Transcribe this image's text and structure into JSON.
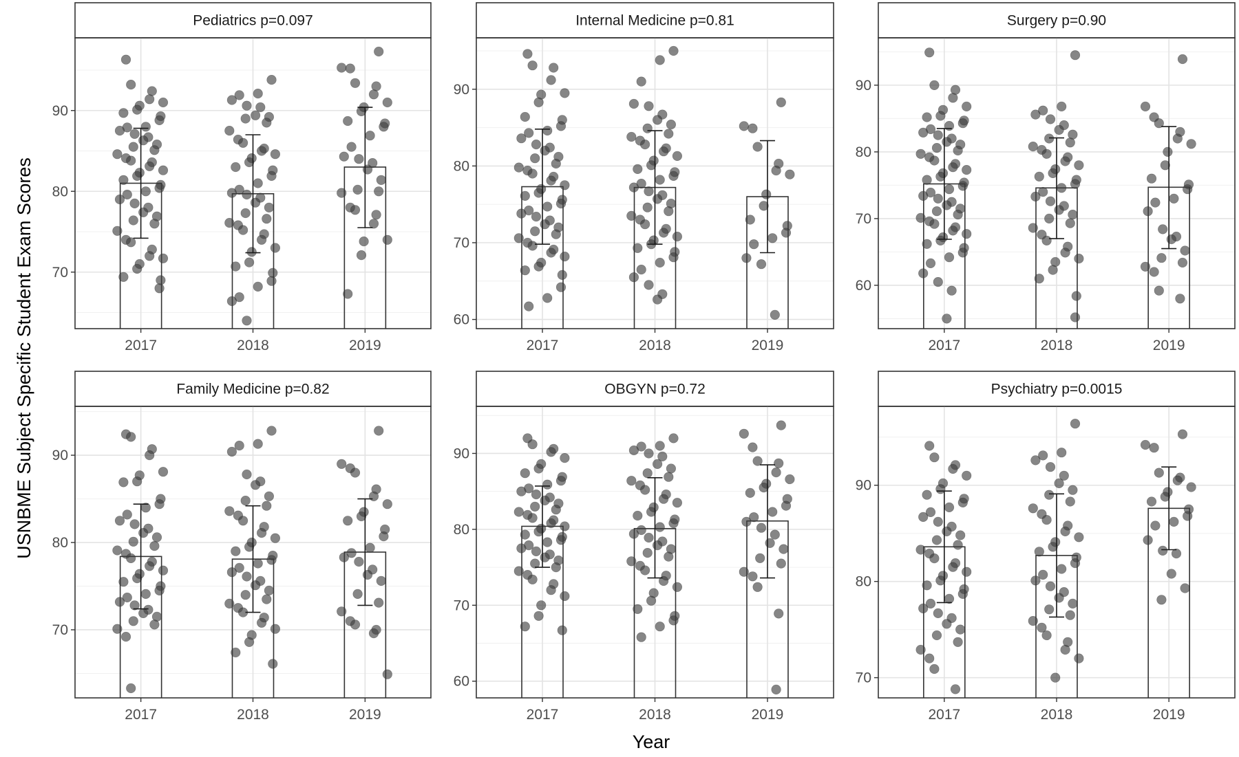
{
  "figure": {
    "xlabel": "Year",
    "ylabel": "USNBME Subject Specific Student Exam Scores"
  },
  "chart_data": [
    {
      "type": "bar",
      "title": "Pediatrics p=0.097",
      "categories": [
        "2017",
        "2018",
        "2019"
      ],
      "values": [
        81.0,
        79.7,
        83.0
      ],
      "error_low": [
        74.2,
        72.4,
        75.5
      ],
      "error_high": [
        87.8,
        87.0,
        90.4
      ],
      "ylim": [
        63,
        99
      ],
      "yticks": [
        70,
        80,
        90
      ],
      "points": [
        [
          96.3,
          93.2,
          92.4,
          91.4,
          91.0,
          90.6,
          90.1,
          89.7,
          89.3,
          88.8,
          88.0,
          87.9,
          87.5,
          87.1,
          86.7,
          86.3,
          85.8,
          85.5,
          85.1,
          84.6,
          84.1,
          83.8,
          83.6,
          83.1,
          82.6,
          82.3,
          81.9,
          81.4,
          80.8,
          80.4,
          80.0,
          79.6,
          79.0,
          78.5,
          78.0,
          77.4,
          76.9,
          76.4,
          76.0,
          75.1,
          74.0,
          73.7,
          72.8,
          72.0,
          71.7,
          71.0,
          70.4,
          69.4,
          69.0,
          68.0
        ],
        [
          93.8,
          92.1,
          91.9,
          91.3,
          90.6,
          90.4,
          89.4,
          89.2,
          89.0,
          88.5,
          87.5,
          86.4,
          86.0,
          85.3,
          85.0,
          84.6,
          84.1,
          83.6,
          83.0,
          82.6,
          81.9,
          81.0,
          80.2,
          79.8,
          79.6,
          79.2,
          78.6,
          78.0,
          77.3,
          76.6,
          76.1,
          75.8,
          75.2,
          74.7,
          74.0,
          73.0,
          72.5,
          71.2,
          70.7,
          69.9,
          68.9,
          68.2,
          66.9,
          66.4,
          64.0
        ],
        [
          97.3,
          95.3,
          95.2,
          93.4,
          93.0,
          92.0,
          91.0,
          90.4,
          89.9,
          88.7,
          88.4,
          88.0,
          86.9,
          85.5,
          84.3,
          84.0,
          83.5,
          82.7,
          81.4,
          80.2,
          80.0,
          79.8,
          78.0,
          77.7,
          77.1,
          76.0,
          74.0,
          73.8,
          72.1,
          67.3
        ]
      ]
    },
    {
      "type": "bar",
      "title": "Internal Medicine  p=0.81",
      "categories": [
        "2017",
        "2018",
        "2019"
      ],
      "values": [
        77.3,
        77.2,
        76.0
      ],
      "error_low": [
        69.8,
        69.8,
        68.7
      ],
      "error_high": [
        84.8,
        84.6,
        83.3
      ],
      "ylim": [
        58.8,
        96.7
      ],
      "yticks": [
        60,
        70,
        80,
        90
      ],
      "points": [
        [
          94.6,
          93.1,
          92.8,
          91.2,
          89.5,
          89.3,
          88.3,
          86.4,
          86.0,
          85.2,
          84.6,
          84.3,
          83.6,
          82.8,
          82.4,
          82.0,
          81.2,
          81.0,
          80.3,
          79.8,
          79.4,
          79.0,
          78.6,
          78.1,
          77.5,
          77.0,
          76.5,
          76.1,
          75.6,
          75.1,
          74.7,
          74.2,
          73.8,
          73.4,
          72.9,
          72.4,
          72.0,
          71.5,
          71.1,
          70.6,
          70.0,
          69.6,
          69.1,
          68.7,
          68.2,
          67.4,
          66.9,
          66.4,
          65.8,
          64.2,
          62.8,
          61.7
        ],
        [
          95.0,
          93.8,
          91.0,
          88.1,
          87.8,
          86.7,
          86.0,
          85.4,
          84.9,
          84.2,
          83.8,
          83.3,
          82.8,
          82.3,
          81.9,
          81.3,
          80.7,
          80.1,
          79.6,
          79.2,
          78.7,
          78.2,
          77.7,
          77.2,
          76.7,
          76.2,
          75.7,
          75.1,
          74.6,
          74.1,
          73.5,
          73.0,
          72.4,
          71.8,
          71.3,
          70.8,
          70.3,
          69.8,
          69.3,
          68.8,
          68.1,
          67.4,
          66.5,
          65.5,
          64.5,
          63.3,
          62.6
        ],
        [
          88.3,
          85.2,
          84.9,
          82.5,
          80.3,
          79.4,
          78.9,
          76.3,
          74.8,
          73.0,
          72.2,
          71.3,
          70.6,
          69.8,
          68.0,
          67.2,
          60.6
        ]
      ]
    },
    {
      "type": "bar",
      "title": "Surgery  p=0.90",
      "categories": [
        "2017",
        "2018",
        "2019"
      ],
      "values": [
        75.2,
        74.6,
        74.7
      ],
      "error_low": [
        66.9,
        67.0,
        65.5
      ],
      "error_high": [
        83.5,
        82.1,
        83.8
      ],
      "ylim": [
        53.5,
        97.1
      ],
      "yticks": [
        60,
        70,
        80,
        90
      ],
      "points": [
        [
          94.9,
          90.0,
          89.3,
          88.1,
          86.8,
          86.3,
          85.4,
          85.2,
          84.7,
          84.3,
          83.9,
          83.4,
          82.9,
          82.5,
          82.0,
          81.5,
          81.1,
          80.6,
          80.2,
          79.7,
          79.2,
          78.7,
          78.2,
          77.7,
          77.3,
          76.8,
          76.3,
          75.8,
          75.4,
          74.9,
          74.4,
          73.9,
          73.4,
          73.0,
          72.5,
          72.0,
          71.5,
          71.1,
          70.6,
          70.1,
          69.6,
          69.2,
          68.7,
          68.2,
          67.7,
          67.2,
          66.7,
          66.2,
          65.6,
          64.9,
          64.2,
          63.3,
          61.8,
          60.5,
          59.2,
          55.0
        ],
        [
          94.5,
          86.8,
          86.2,
          85.6,
          84.9,
          84.0,
          83.3,
          82.6,
          82.0,
          81.4,
          80.8,
          80.3,
          79.7,
          79.2,
          78.6,
          78.0,
          77.4,
          76.8,
          76.3,
          75.8,
          75.2,
          74.6,
          74.0,
          73.3,
          72.6,
          71.9,
          71.3,
          70.6,
          70.0,
          69.3,
          68.6,
          67.6,
          66.7,
          65.8,
          64.9,
          64.0,
          63.5,
          62.3,
          61.0,
          58.4,
          55.2
        ],
        [
          93.9,
          86.8,
          85.2,
          84.3,
          83.0,
          82.0,
          81.2,
          80.0,
          78.0,
          76.0,
          75.1,
          74.4,
          73.0,
          72.4,
          71.1,
          68.4,
          67.3,
          66.9,
          65.2,
          64.1,
          63.4,
          62.8,
          62.0,
          59.2,
          58.0
        ]
      ]
    },
    {
      "type": "bar",
      "title": "Family Medicine  p=0.82",
      "categories": [
        "2017",
        "2018",
        "2019"
      ],
      "values": [
        78.4,
        78.1,
        78.9
      ],
      "error_low": [
        72.4,
        72.0,
        72.8
      ],
      "error_high": [
        84.4,
        84.2,
        85.0
      ],
      "ylim": [
        62.2,
        95.6
      ],
      "yticks": [
        70,
        80,
        90
      ],
      "points": [
        [
          92.4,
          92.1,
          90.7,
          90.0,
          88.1,
          87.7,
          87.0,
          86.9,
          85.0,
          84.4,
          84.0,
          83.2,
          82.5,
          82.1,
          81.6,
          81.1,
          80.6,
          80.1,
          79.6,
          79.1,
          78.7,
          78.2,
          77.8,
          77.3,
          76.8,
          76.4,
          75.9,
          75.5,
          75.0,
          74.5,
          74.1,
          73.7,
          73.2,
          72.8,
          72.3,
          71.9,
          71.5,
          71.0,
          70.6,
          70.1,
          69.2,
          63.3
        ],
        [
          92.8,
          91.3,
          91.1,
          90.4,
          87.8,
          87.0,
          86.6,
          85.3,
          84.8,
          84.2,
          83.6,
          83.1,
          82.5,
          81.8,
          81.1,
          80.5,
          80.0,
          79.5,
          79.0,
          78.5,
          78.0,
          77.6,
          77.1,
          76.6,
          76.1,
          75.6,
          75.1,
          74.5,
          74.0,
          73.5,
          73.0,
          72.5,
          72.0,
          71.4,
          70.8,
          70.1,
          69.4,
          68.6,
          67.4,
          66.1
        ],
        [
          92.8,
          89.0,
          88.5,
          88.0,
          86.1,
          85.3,
          84.4,
          83.5,
          83.0,
          82.5,
          81.5,
          80.7,
          79.4,
          78.8,
          78.3,
          77.8,
          76.9,
          76.3,
          75.6,
          74.1,
          73.1,
          72.1,
          71.0,
          70.6,
          70.0,
          69.6,
          64.9
        ]
      ]
    },
    {
      "type": "bar",
      "title": "OBGYN    p=0.72",
      "categories": [
        "2017",
        "2018",
        "2019"
      ],
      "values": [
        80.4,
        80.1,
        81.1
      ],
      "error_low": [
        75.0,
        73.6,
        73.6
      ],
      "error_high": [
        85.7,
        86.8,
        88.5
      ],
      "ylim": [
        57.8,
        96.2
      ],
      "yticks": [
        60,
        70,
        80,
        90
      ],
      "points": [
        [
          92.0,
          91.2,
          90.6,
          90.2,
          89.4,
          88.6,
          88.0,
          87.4,
          86.9,
          86.4,
          85.9,
          85.4,
          85.0,
          84.6,
          84.2,
          83.8,
          83.4,
          83.0,
          82.6,
          82.3,
          81.9,
          81.5,
          81.2,
          80.8,
          80.4,
          80.1,
          79.7,
          79.3,
          79.0,
          78.6,
          78.3,
          77.9,
          77.5,
          77.1,
          76.7,
          76.3,
          75.9,
          75.5,
          75.0,
          74.5,
          74.0,
          73.4,
          72.8,
          72.0,
          71.2,
          70.0,
          68.6,
          67.2,
          66.7
        ],
        [
          92.0,
          91.0,
          90.9,
          90.4,
          90.0,
          89.6,
          88.6,
          88.0,
          87.4,
          86.9,
          86.4,
          85.8,
          85.2,
          84.6,
          84.0,
          83.5,
          82.9,
          82.3,
          81.8,
          81.3,
          80.8,
          80.3,
          79.9,
          79.4,
          78.9,
          78.4,
          77.9,
          77.4,
          76.9,
          76.4,
          75.8,
          75.2,
          74.6,
          73.9,
          73.2,
          72.4,
          71.6,
          70.6,
          69.5,
          68.6,
          68.0,
          67.2,
          65.8
        ],
        [
          93.7,
          92.6,
          90.8,
          89.0,
          88.7,
          87.5,
          86.6,
          86.0,
          85.5,
          84.8,
          84.0,
          83.1,
          82.3,
          81.6,
          81.0,
          80.2,
          79.3,
          78.2,
          77.4,
          76.2,
          75.5,
          74.4,
          73.8,
          72.4,
          68.9,
          58.9
        ]
      ]
    },
    {
      "type": "bar",
      "title": "Psychiatry  p=0.0015",
      "categories": [
        "2017",
        "2018",
        "2019"
      ],
      "values": [
        83.6,
        82.7,
        87.6
      ],
      "error_low": [
        77.8,
        76.3,
        83.3
      ],
      "error_high": [
        89.4,
        89.1,
        91.9
      ],
      "ylim": [
        67.9,
        98.2
      ],
      "yticks": [
        70,
        80,
        90
      ],
      "points": [
        [
          94.1,
          92.9,
          92.1,
          91.7,
          91.0,
          90.2,
          89.6,
          89.0,
          88.6,
          88.2,
          87.7,
          87.2,
          86.7,
          86.2,
          85.7,
          85.2,
          84.8,
          84.3,
          83.8,
          83.3,
          82.9,
          82.4,
          81.9,
          81.5,
          81.0,
          80.6,
          80.1,
          79.6,
          79.2,
          78.7,
          78.2,
          77.7,
          77.2,
          76.7,
          76.2,
          75.6,
          75.0,
          74.4,
          73.7,
          72.9,
          72.0,
          70.9,
          68.8
        ],
        [
          96.4,
          93.4,
          93.1,
          92.6,
          91.9,
          91.0,
          90.2,
          89.5,
          89.0,
          88.3,
          87.6,
          87.0,
          86.4,
          85.8,
          85.2,
          84.6,
          84.1,
          83.6,
          83.1,
          82.5,
          81.9,
          81.3,
          80.7,
          80.1,
          79.5,
          78.9,
          78.3,
          77.7,
          77.1,
          76.5,
          75.9,
          75.2,
          74.4,
          73.7,
          72.9,
          72.0,
          70.0
        ],
        [
          95.3,
          94.2,
          93.9,
          91.3,
          90.8,
          90.5,
          89.8,
          89.3,
          88.8,
          88.3,
          87.5,
          86.8,
          86.2,
          85.8,
          84.3,
          83.2,
          82.9,
          80.8,
          79.3,
          78.1
        ]
      ]
    }
  ]
}
